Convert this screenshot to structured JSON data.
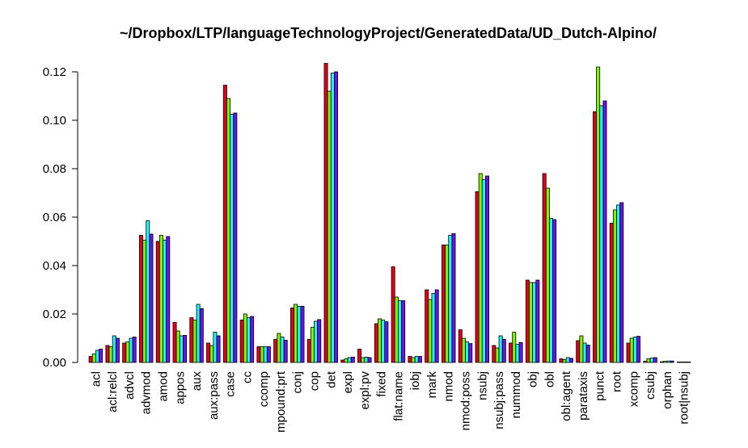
{
  "chart_data": {
    "type": "bar",
    "title": "~/Dropbox/LTP/languageTechnologyProject/GeneratedData/UD_Dutch-Alpino/",
    "xlabel": "",
    "ylabel": "",
    "ylim": [
      0,
      0.12
    ],
    "yticks": [
      "0.00",
      "0.02",
      "0.04",
      "0.06",
      "0.08",
      "0.10",
      "0.12"
    ],
    "grid": false,
    "legend": "none",
    "categories": [
      "acl",
      "acl:relcl",
      "advcl",
      "advmod",
      "amod",
      "appos",
      "aux",
      "aux:pass",
      "case",
      "cc",
      "ccomp",
      "mpound:prt",
      "conj",
      "cop",
      "det",
      "expl",
      "expl:pv",
      "fixed",
      "flat:name",
      "iobj",
      "mark",
      "nmod",
      "nmod:poss",
      "nsubj",
      "nsubj:pass",
      "nummod",
      "obj",
      "obl",
      "obl:agent",
      "parataxis",
      "punct",
      "root",
      "xcomp",
      "csubj",
      "orphan",
      "root|nsubj"
    ],
    "series": [
      {
        "color": "#e8001a",
        "values": [
          0.0025,
          0.007,
          0.008,
          0.0525,
          0.05,
          0.0165,
          0.0185,
          0.008,
          0.1145,
          0.0175,
          0.0065,
          0.0095,
          0.0225,
          0.0095,
          0.1235,
          0.001,
          0.0055,
          0.016,
          0.0395,
          0.0025,
          0.03,
          0.0485,
          0.0135,
          0.0705,
          0.007,
          0.008,
          0.034,
          0.078,
          0.0015,
          0.009,
          0.1035,
          0.0575,
          0.008,
          0.0005,
          0.0003,
          0.0002
        ]
      },
      {
        "color": "#7df500",
        "values": [
          0.0035,
          0.0065,
          0.0085,
          0.0505,
          0.0525,
          0.013,
          0.0175,
          0.007,
          0.109,
          0.02,
          0.0065,
          0.012,
          0.024,
          0.0145,
          0.112,
          0.0015,
          0.002,
          0.018,
          0.027,
          0.002,
          0.026,
          0.0485,
          0.01,
          0.078,
          0.006,
          0.0125,
          0.033,
          0.072,
          0.0012,
          0.011,
          0.122,
          0.063,
          0.01,
          0.0015,
          0.0005,
          0.0002
        ]
      },
      {
        "color": "#1ef5f5",
        "values": [
          0.005,
          0.011,
          0.01,
          0.0585,
          0.0505,
          0.011,
          0.024,
          0.0125,
          0.1025,
          0.0185,
          0.0065,
          0.0105,
          0.0232,
          0.017,
          0.1195,
          0.002,
          0.0022,
          0.0175,
          0.0255,
          0.0025,
          0.0285,
          0.0525,
          0.0085,
          0.0755,
          0.011,
          0.0075,
          0.033,
          0.0595,
          0.002,
          0.008,
          0.106,
          0.065,
          0.0105,
          0.0018,
          0.0006,
          0.0002
        ]
      },
      {
        "color": "#6a12f0",
        "values": [
          0.0055,
          0.01,
          0.0105,
          0.053,
          0.052,
          0.0112,
          0.0222,
          0.011,
          0.103,
          0.019,
          0.0065,
          0.0092,
          0.0232,
          0.0177,
          0.12,
          0.0022,
          0.002,
          0.0168,
          0.0255,
          0.0025,
          0.03,
          0.0532,
          0.0078,
          0.077,
          0.0095,
          0.0082,
          0.034,
          0.059,
          0.0017,
          0.0072,
          0.108,
          0.066,
          0.0108,
          0.002,
          0.0006,
          0.0002
        ]
      }
    ]
  }
}
